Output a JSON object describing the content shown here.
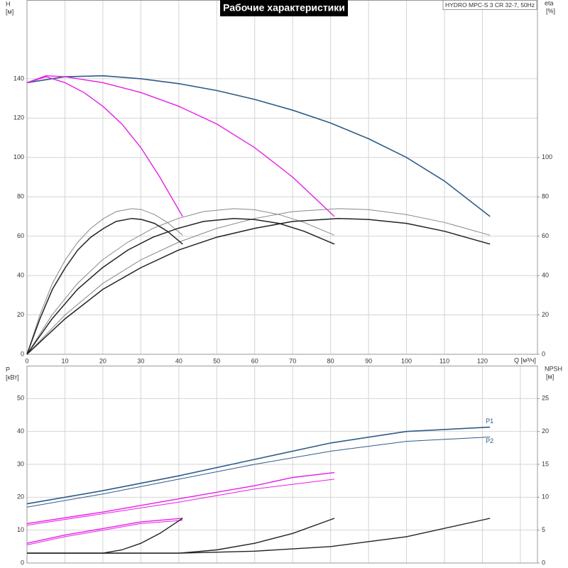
{
  "chart_data": [
    {
      "type": "line",
      "title": "Рабочие характеристики",
      "subtitle": "HYDRO MPC-S 3 CR 32-7, 50Hz",
      "y_label": [
        "H",
        "[м]"
      ],
      "y2_label": [
        "eta",
        "[%]"
      ],
      "x_label": "Q [м³/ч]",
      "xlim": [
        0,
        134.5
      ],
      "xticks": [
        0,
        10,
        20,
        30,
        40,
        50,
        60,
        70,
        80,
        90,
        100,
        110,
        120
      ],
      "xtick_labels": true,
      "ylim": [
        0,
        180
      ],
      "yticks": [
        0,
        20,
        40,
        60,
        80,
        100,
        120,
        140
      ],
      "y2lim": [
        0,
        180
      ],
      "y2ticks": [
        0,
        20,
        40,
        60,
        80,
        100
      ],
      "series": [
        {
          "color": "#2e5c87",
          "width": 1.6,
          "x": [
            0,
            10,
            20,
            30,
            40,
            50,
            60,
            70,
            80,
            90,
            100,
            110,
            122
          ],
          "values": [
            138,
            141,
            141.5,
            140,
            137.5,
            134,
            129.5,
            124,
            117.5,
            109.5,
            100,
            88,
            70
          ]
        },
        {
          "color": "#e61ee6",
          "width": 1.4,
          "x": [
            0,
            5,
            10,
            20,
            30,
            40,
            50,
            60,
            70,
            81
          ],
          "values": [
            138,
            141.5,
            141,
            138,
            133,
            126,
            117,
            105,
            90,
            70
          ]
        },
        {
          "color": "#e61ee6",
          "width": 1.4,
          "x": [
            0,
            5,
            10,
            15,
            20,
            25,
            30,
            35,
            41
          ],
          "values": [
            138,
            141,
            138,
            133,
            126,
            117,
            105,
            90,
            70
          ]
        },
        {
          "color": "#888888",
          "width": 1,
          "axis": "y2",
          "x": [
            0,
            10,
            20,
            30,
            40,
            50,
            60,
            70,
            82,
            90,
            100,
            110,
            122
          ],
          "values": [
            0,
            20,
            36,
            48,
            57,
            64,
            69,
            72.5,
            74,
            73.5,
            71,
            67,
            60.5
          ]
        },
        {
          "color": "#888888",
          "width": 1,
          "axis": "y2",
          "x": [
            0,
            6.6,
            13.3,
            19.9,
            26.6,
            33.2,
            39.8,
            46.5,
            54.4,
            59.8,
            66.4,
            73,
            81
          ],
          "values": [
            0,
            20,
            36,
            48,
            57,
            64,
            69,
            72.5,
            74,
            73.5,
            71,
            67,
            60.5
          ]
        },
        {
          "color": "#888888",
          "width": 1,
          "axis": "y2",
          "x": [
            0,
            3.4,
            6.7,
            10.1,
            13.4,
            16.8,
            20.2,
            23.5,
            27.6,
            30.2,
            33.6,
            37,
            41
          ],
          "values": [
            0,
            20,
            36,
            48,
            57,
            64,
            69,
            72.5,
            74,
            73.5,
            71,
            67,
            60.5
          ]
        },
        {
          "color": "#222222",
          "width": 1.5,
          "axis": "y2",
          "x": [
            0,
            10,
            20,
            30,
            40,
            50,
            60,
            70,
            82,
            90,
            100,
            110,
            122
          ],
          "values": [
            0,
            18,
            33,
            44,
            53,
            59.5,
            64,
            67.5,
            69,
            68.5,
            66.5,
            62.5,
            56
          ]
        },
        {
          "color": "#222222",
          "width": 1.5,
          "axis": "y2",
          "x": [
            0,
            6.6,
            13.3,
            19.9,
            26.6,
            33.2,
            39.8,
            46.5,
            54.4,
            59.8,
            66.4,
            73,
            81
          ],
          "values": [
            0,
            18,
            33,
            44,
            53,
            59.5,
            64,
            67.5,
            69,
            68.5,
            66.5,
            62.5,
            56
          ]
        },
        {
          "color": "#222222",
          "width": 1.5,
          "axis": "y2",
          "x": [
            0,
            3.4,
            6.7,
            10.1,
            13.4,
            16.8,
            20.2,
            23.5,
            27.6,
            30.2,
            33.6,
            37,
            41
          ],
          "values": [
            0,
            18,
            33,
            44,
            53,
            59.5,
            64,
            67.5,
            69,
            68.5,
            66.5,
            62.5,
            56
          ]
        }
      ]
    },
    {
      "type": "line",
      "y_label": [
        "P",
        "[кВт]"
      ],
      "y2_label": [
        "NPSH",
        "[м]"
      ],
      "xlim": [
        0,
        134.5
      ],
      "xticks": [
        0,
        10,
        20,
        30,
        40,
        50,
        60,
        70,
        80,
        90,
        100,
        110,
        120,
        130
      ],
      "xtick_labels": false,
      "ylim": [
        0,
        60
      ],
      "yticks": [
        0,
        10,
        20,
        30,
        40,
        50
      ],
      "y2lim": [
        0,
        30
      ],
      "y2ticks": [
        0,
        5,
        10,
        15,
        20,
        25
      ],
      "series": [
        {
          "name": "P1",
          "color": "#2e5c87",
          "width": 1.6,
          "x": [
            0,
            20,
            40,
            60,
            80,
            100,
            122
          ],
          "values": [
            18,
            22,
            26.5,
            31.5,
            36.5,
            40,
            41.3
          ]
        },
        {
          "name": "P2",
          "color": "#2e5c87",
          "width": 1,
          "x": [
            0,
            20,
            40,
            60,
            80,
            100,
            122
          ],
          "values": [
            17,
            21,
            25.5,
            30,
            34,
            37,
            38.3
          ]
        },
        {
          "color": "#e61ee6",
          "width": 1.4,
          "x": [
            0,
            20,
            40,
            60,
            70,
            81
          ],
          "values": [
            12,
            15.5,
            19.5,
            23.5,
            26,
            27.5
          ]
        },
        {
          "color": "#e61ee6",
          "width": 1,
          "x": [
            0,
            20,
            40,
            60,
            81
          ],
          "values": [
            11.5,
            15,
            18.5,
            22.5,
            25.5
          ]
        },
        {
          "color": "#e61ee6",
          "width": 1.4,
          "x": [
            0,
            10,
            20,
            30,
            41
          ],
          "values": [
            6,
            8.5,
            10.5,
            12.5,
            13.6
          ]
        },
        {
          "color": "#e61ee6",
          "width": 1,
          "x": [
            0,
            10,
            20,
            30,
            41
          ],
          "values": [
            5.5,
            8,
            10,
            12,
            13
          ]
        },
        {
          "color": "#222222",
          "width": 1.4,
          "axis": "y2",
          "x": [
            0,
            40,
            60,
            80,
            100,
            122
          ],
          "values": [
            1.5,
            1.5,
            1.8,
            2.5,
            4,
            6.8
          ]
        },
        {
          "color": "#222222",
          "width": 1.4,
          "axis": "y2",
          "x": [
            0,
            40,
            50,
            60,
            70,
            81
          ],
          "values": [
            1.5,
            1.5,
            2,
            3,
            4.5,
            6.8
          ]
        },
        {
          "color": "#222222",
          "width": 1.4,
          "axis": "y2",
          "x": [
            0,
            20,
            25,
            30,
            35,
            41
          ],
          "values": [
            1.5,
            1.5,
            2,
            3,
            4.5,
            6.8
          ]
        }
      ]
    }
  ]
}
